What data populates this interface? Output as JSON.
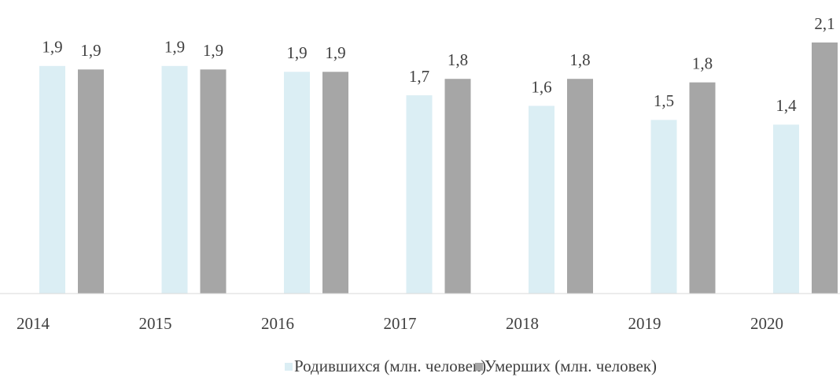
{
  "chart_data": {
    "type": "bar",
    "categories": [
      "2014",
      "2015",
      "2016",
      "2017",
      "2018",
      "2019",
      "2020"
    ],
    "series": [
      {
        "name": "Родившихся (млн. человек)",
        "color": "#dbeef4",
        "values": [
          1.94,
          1.94,
          1.89,
          1.69,
          1.6,
          1.48,
          1.44
        ],
        "value_labels": [
          "1,9",
          "1,9",
          "1,9",
          "1,7",
          "1,6",
          "1,5",
          "1,4"
        ]
      },
      {
        "name": "Умерших (млн. человек)",
        "color": "#a6a6a6",
        "values": [
          1.91,
          1.91,
          1.89,
          1.83,
          1.83,
          1.8,
          2.14
        ],
        "value_labels": [
          "1,9",
          "1,9",
          "1,9",
          "1,8",
          "1,8",
          "1,8",
          "2,1"
        ]
      }
    ],
    "legend": "bottom"
  }
}
